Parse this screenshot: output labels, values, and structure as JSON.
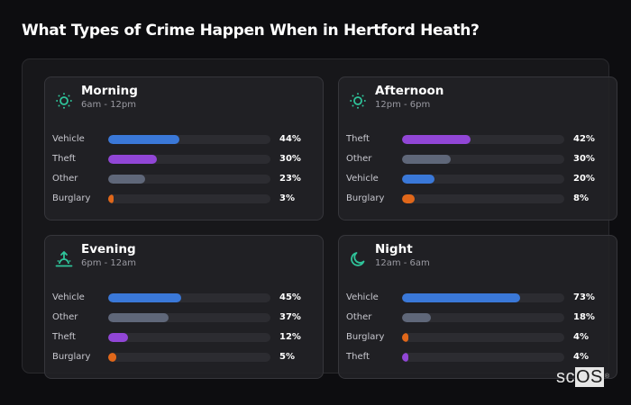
{
  "title": "What Types of Crime Happen When in Hertford Heath?",
  "colors": {
    "Vehicle": "#3a78d8",
    "Theft": "#9146d6",
    "Other": "#5f6779",
    "Burglary": "#e0671a",
    "icon": "#2fc49a"
  },
  "cards": [
    {
      "title": "Morning",
      "subtitle": "6am - 12pm",
      "icon": "sun-icon",
      "rows": [
        {
          "label": "Vehicle",
          "value": 44,
          "pct": "44%"
        },
        {
          "label": "Theft",
          "value": 30,
          "pct": "30%"
        },
        {
          "label": "Other",
          "value": 23,
          "pct": "23%"
        },
        {
          "label": "Burglary",
          "value": 3,
          "pct": "3%"
        }
      ]
    },
    {
      "title": "Afternoon",
      "subtitle": "12pm - 6pm",
      "icon": "sun-icon",
      "rows": [
        {
          "label": "Theft",
          "value": 42,
          "pct": "42%"
        },
        {
          "label": "Other",
          "value": 30,
          "pct": "30%"
        },
        {
          "label": "Vehicle",
          "value": 20,
          "pct": "20%"
        },
        {
          "label": "Burglary",
          "value": 8,
          "pct": "8%"
        }
      ]
    },
    {
      "title": "Evening",
      "subtitle": "6pm - 12am",
      "icon": "sunset-icon",
      "rows": [
        {
          "label": "Vehicle",
          "value": 45,
          "pct": "45%"
        },
        {
          "label": "Other",
          "value": 37,
          "pct": "37%"
        },
        {
          "label": "Theft",
          "value": 12,
          "pct": "12%"
        },
        {
          "label": "Burglary",
          "value": 5,
          "pct": "5%"
        }
      ]
    },
    {
      "title": "Night",
      "subtitle": "12am - 6am",
      "icon": "moon-icon",
      "rows": [
        {
          "label": "Vehicle",
          "value": 73,
          "pct": "73%"
        },
        {
          "label": "Other",
          "value": 18,
          "pct": "18%"
        },
        {
          "label": "Burglary",
          "value": 4,
          "pct": "4%"
        },
        {
          "label": "Theft",
          "value": 4,
          "pct": "4%"
        }
      ]
    }
  ],
  "logo": {
    "sc": "sc",
    "os": "OS",
    "mark": "®"
  },
  "chart_data": {
    "type": "bar",
    "orientation": "horizontal",
    "title": "What Types of Crime Happen When in Hertford Heath?",
    "xlabel": "",
    "ylabel": "",
    "xlim": [
      0,
      100
    ],
    "grid": false,
    "legend": null,
    "panels": [
      {
        "title": "Morning",
        "subtitle": "6am - 12pm",
        "categories": [
          "Vehicle",
          "Theft",
          "Other",
          "Burglary"
        ],
        "values": [
          44,
          30,
          23,
          3
        ]
      },
      {
        "title": "Afternoon",
        "subtitle": "12pm - 6pm",
        "categories": [
          "Theft",
          "Other",
          "Vehicle",
          "Burglary"
        ],
        "values": [
          42,
          30,
          20,
          8
        ]
      },
      {
        "title": "Evening",
        "subtitle": "6pm - 12am",
        "categories": [
          "Vehicle",
          "Other",
          "Theft",
          "Burglary"
        ],
        "values": [
          45,
          37,
          12,
          5
        ]
      },
      {
        "title": "Night",
        "subtitle": "12am - 6am",
        "categories": [
          "Vehicle",
          "Other",
          "Burglary",
          "Theft"
        ],
        "values": [
          73,
          18,
          4,
          4
        ]
      }
    ],
    "series_colors": {
      "Vehicle": "#3a78d8",
      "Theft": "#9146d6",
      "Other": "#5f6779",
      "Burglary": "#e0671a"
    }
  }
}
